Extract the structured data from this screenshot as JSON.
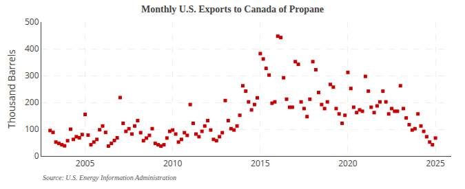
{
  "chart_data": {
    "type": "scatter",
    "title": "Monthly U.S. Exports to Canada of Propane",
    "y_label": "Thousand Barrels",
    "annotations": [
      "Source: U.S. Energy Information Administration"
    ],
    "color": "#cc0000",
    "marker": "square",
    "grid": true,
    "xlim": [
      2002.5,
      2025.9
    ],
    "xticks": [
      2005,
      2010,
      2015,
      2020,
      2025
    ],
    "ylim": [
      0,
      500
    ],
    "yticks": [
      0,
      100,
      200,
      300,
      400,
      500
    ],
    "x": [
      2003.0,
      2003.17,
      2003.33,
      2003.5,
      2003.67,
      2003.83,
      2004.0,
      2004.17,
      2004.33,
      2004.5,
      2004.67,
      2004.83,
      2005.0,
      2005.17,
      2005.33,
      2005.5,
      2005.67,
      2005.83,
      2006.0,
      2006.17,
      2006.33,
      2006.5,
      2006.67,
      2006.83,
      2007.0,
      2007.17,
      2007.33,
      2007.5,
      2007.67,
      2007.83,
      2008.0,
      2008.17,
      2008.33,
      2008.5,
      2008.67,
      2008.83,
      2009.0,
      2009.17,
      2009.33,
      2009.5,
      2009.67,
      2009.83,
      2010.0,
      2010.17,
      2010.33,
      2010.5,
      2010.67,
      2010.83,
      2011.0,
      2011.17,
      2011.33,
      2011.5,
      2011.67,
      2011.83,
      2012.0,
      2012.17,
      2012.33,
      2012.5,
      2012.67,
      2012.83,
      2013.0,
      2013.17,
      2013.33,
      2013.5,
      2013.67,
      2013.83,
      2014.0,
      2014.17,
      2014.33,
      2014.5,
      2014.67,
      2014.83,
      2015.0,
      2015.17,
      2015.33,
      2015.5,
      2015.67,
      2015.83,
      2016.0,
      2016.17,
      2016.33,
      2016.5,
      2016.67,
      2016.83,
      2017.0,
      2017.17,
      2017.33,
      2017.5,
      2017.67,
      2017.83,
      2018.0,
      2018.17,
      2018.33,
      2018.5,
      2018.67,
      2018.83,
      2019.0,
      2019.17,
      2019.33,
      2019.5,
      2019.67,
      2019.83,
      2020.0,
      2020.17,
      2020.33,
      2020.5,
      2020.67,
      2020.83,
      2021.0,
      2021.17,
      2021.33,
      2021.5,
      2021.67,
      2021.83,
      2022.0,
      2022.17,
      2022.33,
      2022.5,
      2022.67,
      2022.83,
      2023.0,
      2023.17,
      2023.33,
      2023.5,
      2023.67,
      2023.83,
      2024.0,
      2024.17,
      2024.33,
      2024.5,
      2024.67,
      2024.83,
      2025.0
    ],
    "values": [
      95,
      88,
      52,
      47,
      42,
      38,
      57,
      100,
      62,
      72,
      68,
      80,
      155,
      78,
      42,
      52,
      62,
      98,
      112,
      88,
      37,
      47,
      58,
      68,
      218,
      122,
      92,
      102,
      82,
      112,
      132,
      87,
      57,
      67,
      77,
      102,
      47,
      42,
      37,
      42,
      67,
      92,
      97,
      82,
      52,
      62,
      87,
      77,
      192,
      122,
      82,
      72,
      92,
      112,
      132,
      97,
      62,
      57,
      72,
      87,
      207,
      132,
      102,
      97,
      112,
      152,
      262,
      242,
      202,
      172,
      192,
      217,
      382,
      362,
      327,
      302,
      197,
      202,
      447,
      442,
      292,
      212,
      182,
      182,
      352,
      342,
      202,
      177,
      147,
      212,
      352,
      322,
      237,
      192,
      177,
      202,
      267,
      257,
      177,
      157,
      122,
      152,
      312,
      252,
      182,
      162,
      172,
      167,
      297,
      242,
      182,
      162,
      187,
      202,
      242,
      202,
      157,
      177,
      167,
      167,
      262,
      177,
      142,
      117,
      97,
      102,
      157,
      112,
      92,
      72,
      52,
      42,
      67
    ]
  }
}
